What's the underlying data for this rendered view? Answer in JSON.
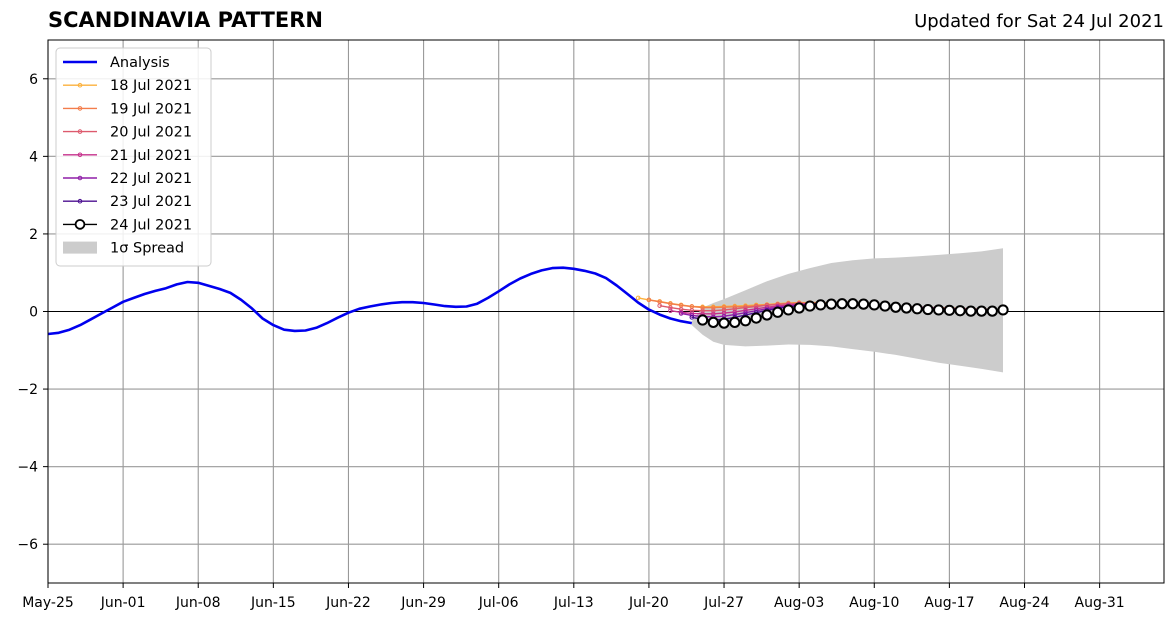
{
  "chart_data": {
    "type": "line",
    "title": "SCANDINAVIA PATTERN",
    "subtitle": "Updated for Sat 24 Jul 2021",
    "xlabel": "",
    "ylabel": "",
    "xlim": [
      "2021-05-25",
      "2021-09-06"
    ],
    "ylim": [
      -7,
      7
    ],
    "x_ticks": [
      "May-25",
      "Jun-01",
      "Jun-08",
      "Jun-15",
      "Jun-22",
      "Jun-29",
      "Jul-06",
      "Jul-13",
      "Jul-20",
      "Jul-27",
      "Aug-03",
      "Aug-10",
      "Aug-17",
      "Aug-24",
      "Aug-31"
    ],
    "y_ticks": [
      6,
      4,
      2,
      0,
      -2,
      -4,
      -6
    ],
    "y_tick_labels": [
      "6",
      "4",
      "2",
      "0",
      "−2",
      "−4",
      "−6"
    ],
    "grid": true,
    "legend_position": "top-left",
    "analysis": {
      "name": "Analysis",
      "color": "#0000ee",
      "points": [
        [
          "2021-05-25",
          -0.58
        ],
        [
          "2021-05-26",
          -0.55
        ],
        [
          "2021-05-27",
          -0.47
        ],
        [
          "2021-05-28",
          -0.35
        ],
        [
          "2021-05-29",
          -0.2
        ],
        [
          "2021-05-30",
          -0.05
        ],
        [
          "2021-05-31",
          0.1
        ],
        [
          "2021-06-01",
          0.25
        ],
        [
          "2021-06-02",
          0.35
        ],
        [
          "2021-06-03",
          0.45
        ],
        [
          "2021-06-04",
          0.53
        ],
        [
          "2021-06-05",
          0.6
        ],
        [
          "2021-06-06",
          0.7
        ],
        [
          "2021-06-07",
          0.76
        ],
        [
          "2021-06-08",
          0.74
        ],
        [
          "2021-06-09",
          0.66
        ],
        [
          "2021-06-10",
          0.58
        ],
        [
          "2021-06-11",
          0.48
        ],
        [
          "2021-06-12",
          0.3
        ],
        [
          "2021-06-13",
          0.08
        ],
        [
          "2021-06-14",
          -0.18
        ],
        [
          "2021-06-15",
          -0.35
        ],
        [
          "2021-06-16",
          -0.47
        ],
        [
          "2021-06-17",
          -0.5
        ],
        [
          "2021-06-18",
          -0.49
        ],
        [
          "2021-06-19",
          -0.42
        ],
        [
          "2021-06-20",
          -0.3
        ],
        [
          "2021-06-21",
          -0.16
        ],
        [
          "2021-06-22",
          -0.03
        ],
        [
          "2021-06-23",
          0.07
        ],
        [
          "2021-06-24",
          0.13
        ],
        [
          "2021-06-25",
          0.18
        ],
        [
          "2021-06-26",
          0.22
        ],
        [
          "2021-06-27",
          0.24
        ],
        [
          "2021-06-28",
          0.24
        ],
        [
          "2021-06-29",
          0.22
        ],
        [
          "2021-06-30",
          0.18
        ],
        [
          "2021-07-01",
          0.14
        ],
        [
          "2021-07-02",
          0.12
        ],
        [
          "2021-07-03",
          0.13
        ],
        [
          "2021-07-04",
          0.2
        ],
        [
          "2021-07-05",
          0.35
        ],
        [
          "2021-07-06",
          0.52
        ],
        [
          "2021-07-07",
          0.7
        ],
        [
          "2021-07-08",
          0.85
        ],
        [
          "2021-07-09",
          0.97
        ],
        [
          "2021-07-10",
          1.06
        ],
        [
          "2021-07-11",
          1.12
        ],
        [
          "2021-07-12",
          1.13
        ],
        [
          "2021-07-13",
          1.1
        ],
        [
          "2021-07-14",
          1.05
        ],
        [
          "2021-07-15",
          0.98
        ],
        [
          "2021-07-16",
          0.86
        ],
        [
          "2021-07-17",
          0.67
        ],
        [
          "2021-07-18",
          0.45
        ],
        [
          "2021-07-19",
          0.23
        ],
        [
          "2021-07-20",
          0.05
        ],
        [
          "2021-07-21",
          -0.08
        ],
        [
          "2021-07-22",
          -0.18
        ],
        [
          "2021-07-23",
          -0.25
        ],
        [
          "2021-07-24",
          -0.3
        ]
      ]
    },
    "forecasts": [
      {
        "name": "18 Jul 2021",
        "color": "#fbb13c",
        "start": "2021-07-19",
        "values": [
          0.35,
          0.3,
          0.26,
          0.21,
          0.17,
          0.13,
          0.12,
          0.12,
          0.13,
          0.14,
          0.15,
          0.17,
          0.18,
          0.2,
          0.22,
          0.23,
          0.23,
          0.23,
          0.22,
          0.2,
          0.18,
          0.16,
          0.15,
          0.14,
          0.13,
          0.12,
          0.11,
          0.1,
          0.1,
          0.09,
          0.08,
          0.07,
          0.06,
          0.06
        ]
      },
      {
        "name": "19 Jul 2021",
        "color": "#f37d4b",
        "start": "2021-07-20",
        "values": [
          0.3,
          0.25,
          0.2,
          0.16,
          0.13,
          0.1,
          0.1,
          0.11,
          0.12,
          0.13,
          0.15,
          0.17,
          0.19,
          0.21,
          0.22,
          0.22,
          0.22,
          0.21,
          0.2,
          0.18,
          0.16,
          0.15,
          0.14,
          0.13,
          0.12,
          0.11,
          0.1,
          0.09,
          0.08,
          0.07,
          0.06,
          0.06,
          0.05
        ]
      },
      {
        "name": "20 Jul 2021",
        "color": "#dd5a6d",
        "start": "2021-07-21",
        "values": [
          0.15,
          0.1,
          0.06,
          0.03,
          0.02,
          0.02,
          0.04,
          0.07,
          0.1,
          0.13,
          0.16,
          0.18,
          0.2,
          0.21,
          0.21,
          0.21,
          0.2,
          0.19,
          0.17,
          0.16,
          0.15,
          0.14,
          0.13,
          0.12,
          0.11,
          0.1,
          0.09,
          0.08,
          0.07,
          0.06,
          0.05,
          0.05
        ]
      },
      {
        "name": "21 Jul 2021",
        "color": "#c6318b",
        "start": "2021-07-22",
        "values": [
          0.02,
          -0.02,
          -0.05,
          -0.06,
          -0.06,
          -0.04,
          -0.01,
          0.03,
          0.07,
          0.11,
          0.14,
          0.17,
          0.19,
          0.2,
          0.2,
          0.2,
          0.19,
          0.18,
          0.17,
          0.15,
          0.14,
          0.13,
          0.12,
          0.11,
          0.1,
          0.09,
          0.08,
          0.07,
          0.06,
          0.05,
          0.05
        ]
      },
      {
        "name": "22 Jul 2021",
        "color": "#8f1ea8",
        "start": "2021-07-23",
        "values": [
          -0.05,
          -0.1,
          -0.13,
          -0.14,
          -0.12,
          -0.08,
          -0.03,
          0.02,
          0.07,
          0.11,
          0.14,
          0.17,
          0.19,
          0.2,
          0.2,
          0.19,
          0.18,
          0.17,
          0.15,
          0.14,
          0.12,
          0.11,
          0.1,
          0.09,
          0.08,
          0.07,
          0.06,
          0.05,
          0.05,
          0.04
        ]
      },
      {
        "name": "23 Jul 2021",
        "color": "#4b0f91",
        "start": "2021-07-24",
        "values": [
          -0.15,
          -0.2,
          -0.22,
          -0.2,
          -0.15,
          -0.09,
          -0.03,
          0.03,
          0.08,
          0.12,
          0.15,
          0.18,
          0.19,
          0.2,
          0.19,
          0.18,
          0.16,
          0.14,
          0.12,
          0.1,
          0.09,
          0.08,
          0.07,
          0.06,
          0.05,
          0.04,
          0.03,
          0.03,
          0.03
        ]
      }
    ],
    "latest_forecast": {
      "name": "24 Jul 2021",
      "color": "#000000",
      "start": "2021-07-25",
      "values": [
        -0.22,
        -0.28,
        -0.3,
        -0.28,
        -0.24,
        -0.17,
        -0.09,
        -0.02,
        0.04,
        0.09,
        0.14,
        0.17,
        0.19,
        0.2,
        0.2,
        0.19,
        0.17,
        0.14,
        0.11,
        0.09,
        0.07,
        0.05,
        0.04,
        0.03,
        0.02,
        0.01,
        0.01,
        0.01,
        0.04
      ]
    },
    "spread": {
      "name": "1σ Spread",
      "color": "#cccccc",
      "points": [
        [
          "2021-07-24",
          -0.35,
          -0.25
        ],
        [
          "2021-07-25",
          -0.6,
          0.1
        ],
        [
          "2021-07-26",
          -0.78,
          0.22
        ],
        [
          "2021-07-27",
          -0.86,
          0.32
        ],
        [
          "2021-07-29",
          -0.9,
          0.55
        ],
        [
          "2021-07-31",
          -0.88,
          0.78
        ],
        [
          "2021-08-02",
          -0.85,
          0.97
        ],
        [
          "2021-08-04",
          -0.86,
          1.12
        ],
        [
          "2021-08-06",
          -0.9,
          1.25
        ],
        [
          "2021-08-08",
          -0.97,
          1.32
        ],
        [
          "2021-08-10",
          -1.04,
          1.37
        ],
        [
          "2021-08-12",
          -1.12,
          1.39
        ],
        [
          "2021-08-14",
          -1.22,
          1.42
        ],
        [
          "2021-08-16",
          -1.32,
          1.46
        ],
        [
          "2021-08-18",
          -1.4,
          1.5
        ],
        [
          "2021-08-20",
          -1.48,
          1.55
        ],
        [
          "2021-08-22",
          -1.57,
          1.63
        ]
      ]
    }
  }
}
